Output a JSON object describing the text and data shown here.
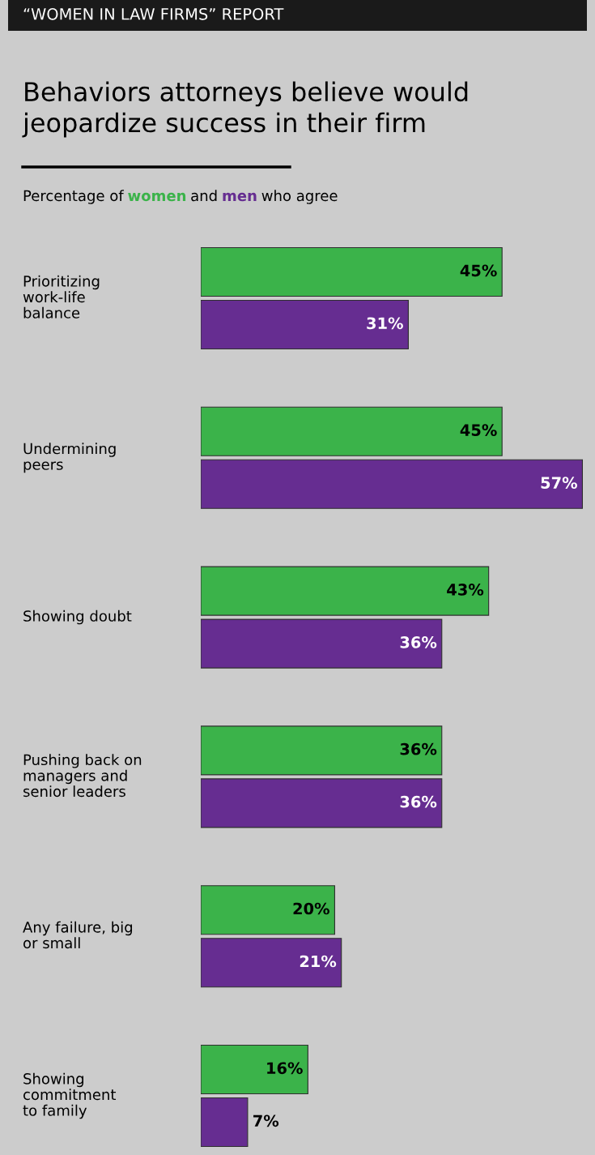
{
  "chart_data": {
    "type": "bar",
    "orientation": "horizontal",
    "annotations": [
      "“WOMEN IN LAW FIRMS” REPORT",
      "Percentage of",
      "and",
      "who agree"
    ],
    "title": "Behaviors attorneys believe would\njeopardize success in their firm",
    "categories": [
      "Prioritizing\nwork-life\nbalance",
      "Undermining\npeers",
      "Showing doubt",
      "Pushing back on\nmanagers and\nsenior leaders",
      "Any failure, big\nor small",
      "Showing\ncommitment\nto family"
    ],
    "series": [
      {
        "name": "women",
        "color": "#3bb34a",
        "values": [
          45,
          45,
          43,
          36,
          20,
          16
        ],
        "value_labels": [
          "45%",
          "45%",
          "43%",
          "36%",
          "20%",
          "16%"
        ]
      },
      {
        "name": "men",
        "color": "#662d91",
        "values": [
          31,
          57,
          36,
          36,
          21,
          7
        ],
        "value_labels": [
          "31%",
          "57%",
          "36%",
          "36%",
          "21%",
          "7%"
        ]
      }
    ]
  }
}
